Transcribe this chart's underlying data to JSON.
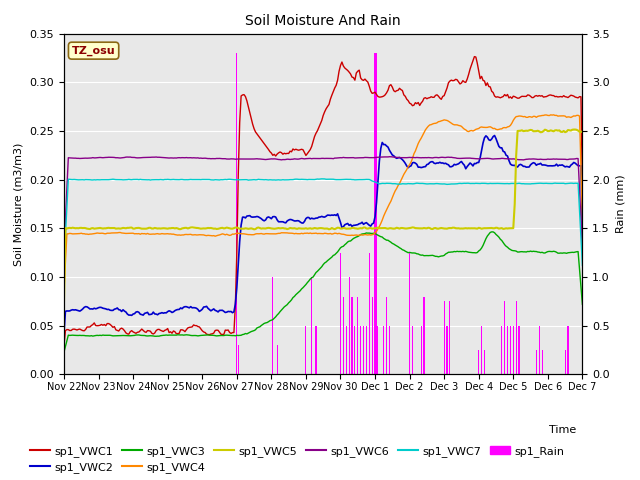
{
  "title": "Soil Moisture And Rain",
  "xlabel": "Time",
  "ylabel_left": "Soil Moisture (m3/m3)",
  "ylabel_right": "Rain (mm)",
  "ylim_left": [
    0.0,
    0.35
  ],
  "ylim_right": [
    0.0,
    3.5
  ],
  "station_label": "TZ_osu",
  "fig_facecolor": "#ffffff",
  "plot_bg_color": "#e8e8e8",
  "xtick_labels": [
    "Nov 22",
    "Nov 23",
    "Nov 24",
    "Nov 25",
    "Nov 26",
    "Nov 27",
    "Nov 28",
    "Nov 29",
    "Nov 30",
    "Dec 1",
    "Dec 2",
    "Dec 3",
    "Dec 4",
    "Dec 5",
    "Dec 6",
    "Dec 7"
  ],
  "xtick_positions": [
    0,
    24,
    48,
    72,
    96,
    120,
    144,
    168,
    192,
    216,
    240,
    264,
    288,
    312,
    336,
    360
  ],
  "colors": {
    "VWC1": "#cc0000",
    "VWC2": "#0000cc",
    "VWC3": "#00aa00",
    "VWC4": "#ff8800",
    "VWC5": "#cccc00",
    "VWC6": "#880088",
    "VWC7": "#00cccc",
    "Rain": "#ff00ff"
  },
  "legend_row1": [
    "sp1_VWC1",
    "sp1_VWC2",
    "sp1_VWC3",
    "sp1_VWC4",
    "sp1_VWC5",
    "sp1_VWC6"
  ],
  "legend_row2": [
    "sp1_VWC7",
    "sp1_Rain"
  ]
}
